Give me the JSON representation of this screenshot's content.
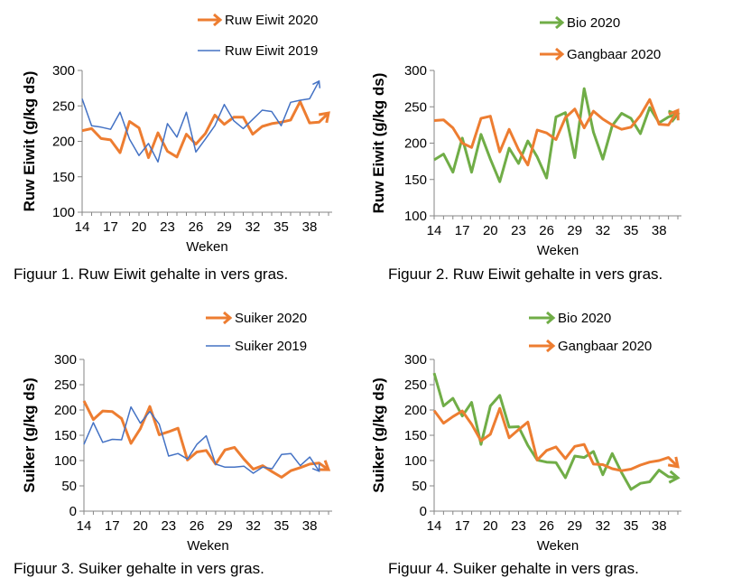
{
  "captions": [
    "Figuur 1. Ruw Eiwit gehalte in vers gras.",
    "Figuur 2. Ruw Eiwit gehalte in vers gras.",
    "Figuur 3. Suiker gehalte in vers gras.",
    "Figuur 4. Suiker gehalte in vers gras."
  ],
  "colors": {
    "orange": "#ED7D31",
    "blue": "#4472C4",
    "green": "#70AD47",
    "axis": "#868686",
    "text": "#000000"
  },
  "chart_data": [
    {
      "type": "line",
      "xlabel": "Weken",
      "ylabel": "Ruw Eiwit (g/kg ds)",
      "xlim": [
        14,
        40
      ],
      "ylim": [
        100,
        300
      ],
      "xticks": [
        14,
        17,
        20,
        23,
        26,
        29,
        32,
        35,
        38
      ],
      "yticks": [
        100,
        150,
        200,
        250,
        300
      ],
      "grid": false,
      "legend": "top-right",
      "series": [
        {
          "name": "Ruw Eiwit 2020",
          "color": "#ED7D31",
          "width": 3,
          "x": [
            14,
            15,
            16,
            17,
            18,
            19,
            20,
            21,
            22,
            23,
            24,
            25,
            26,
            27,
            28,
            29,
            30,
            31,
            32,
            33,
            34,
            35,
            36,
            37,
            38,
            39,
            40
          ],
          "values": [
            215,
            218,
            204,
            202,
            184,
            228,
            219,
            177,
            212,
            186,
            178,
            210,
            196,
            211,
            237,
            224,
            234,
            234,
            210,
            221,
            225,
            227,
            230,
            256,
            226,
            227,
            240
          ]
        },
        {
          "name": "Ruw Eiwit 2019",
          "color": "#4472C4",
          "width": 1.5,
          "x": [
            14,
            15,
            16,
            17,
            18,
            19,
            20,
            21,
            22,
            23,
            24,
            25,
            26,
            27,
            28,
            29,
            30,
            31,
            32,
            33,
            34,
            35,
            36,
            37,
            38,
            39
          ],
          "values": [
            260,
            222,
            220,
            217,
            241,
            203,
            180,
            197,
            171,
            225,
            206,
            241,
            185,
            203,
            222,
            252,
            229,
            218,
            231,
            244,
            242,
            222,
            255,
            258,
            260,
            285
          ]
        }
      ]
    },
    {
      "type": "line",
      "xlabel": "Weken",
      "ylabel": "Ruw Eiwit (g/kg ds)",
      "xlim": [
        14,
        40
      ],
      "ylim": [
        100,
        300
      ],
      "xticks": [
        14,
        17,
        20,
        23,
        26,
        29,
        32,
        35,
        38
      ],
      "yticks": [
        100,
        150,
        200,
        250,
        300
      ],
      "grid": false,
      "legend": "top-right",
      "series": [
        {
          "name": "Bio 2020",
          "color": "#70AD47",
          "width": 3,
          "x": [
            14,
            15,
            16,
            17,
            18,
            19,
            20,
            21,
            22,
            23,
            24,
            25,
            26,
            27,
            28,
            29,
            30,
            31,
            32,
            33,
            34,
            35,
            36,
            37,
            38,
            39,
            40
          ],
          "values": [
            177,
            185,
            160,
            207,
            160,
            212,
            178,
            147,
            193,
            172,
            203,
            181,
            152,
            236,
            242,
            180,
            275,
            215,
            178,
            224,
            241,
            234,
            213,
            249,
            228,
            236,
            240
          ]
        },
        {
          "name": "Gangbaar 2020",
          "color": "#ED7D31",
          "width": 3,
          "x": [
            14,
            15,
            16,
            17,
            18,
            19,
            20,
            21,
            22,
            23,
            24,
            25,
            26,
            27,
            28,
            29,
            30,
            31,
            32,
            33,
            34,
            35,
            36,
            37,
            38,
            39,
            40
          ],
          "values": [
            231,
            232,
            221,
            200,
            194,
            234,
            237,
            188,
            219,
            191,
            170,
            218,
            214,
            205,
            235,
            247,
            221,
            244,
            233,
            225,
            219,
            222,
            238,
            260,
            226,
            225,
            245
          ]
        }
      ]
    },
    {
      "type": "line",
      "xlabel": "Weken",
      "ylabel": "Suiker (g/kg ds)",
      "xlim": [
        14,
        40
      ],
      "ylim": [
        0,
        300
      ],
      "xticks": [
        14,
        17,
        20,
        23,
        26,
        29,
        32,
        35,
        38
      ],
      "yticks": [
        0,
        50,
        100,
        150,
        200,
        250,
        300
      ],
      "grid": false,
      "legend": "top-right",
      "series": [
        {
          "name": "Suiker 2020",
          "color": "#ED7D31",
          "width": 3,
          "x": [
            14,
            15,
            16,
            17,
            18,
            19,
            20,
            21,
            22,
            23,
            24,
            25,
            26,
            27,
            28,
            29,
            30,
            31,
            32,
            33,
            34,
            35,
            36,
            37,
            38,
            39,
            40
          ],
          "values": [
            218,
            181,
            198,
            197,
            183,
            134,
            163,
            207,
            151,
            157,
            164,
            101,
            117,
            120,
            93,
            121,
            126,
            103,
            83,
            90,
            78,
            67,
            80,
            86,
            93,
            95,
            82
          ]
        },
        {
          "name": "Suiker 2019",
          "color": "#4472C4",
          "width": 1.5,
          "x": [
            14,
            15,
            16,
            17,
            18,
            19,
            20,
            21,
            22,
            23,
            24,
            25,
            26,
            27,
            28,
            29,
            30,
            31,
            32,
            33,
            34,
            35,
            36,
            37,
            38,
            39
          ],
          "values": [
            132,
            175,
            136,
            142,
            141,
            206,
            174,
            197,
            172,
            109,
            114,
            103,
            132,
            149,
            93,
            87,
            87,
            89,
            75,
            87,
            84,
            112,
            114,
            90,
            107,
            79
          ]
        }
      ]
    },
    {
      "type": "line",
      "xlabel": "Weken",
      "ylabel": "Suiker (g/kg ds)",
      "xlim": [
        14,
        40
      ],
      "ylim": [
        0,
        300
      ],
      "xticks": [
        14,
        17,
        20,
        23,
        26,
        29,
        32,
        35,
        38
      ],
      "yticks": [
        0,
        50,
        100,
        150,
        200,
        250,
        300
      ],
      "grid": false,
      "legend": "top-right",
      "series": [
        {
          "name": "Bio 2020",
          "color": "#70AD47",
          "width": 3,
          "x": [
            14,
            15,
            16,
            17,
            18,
            19,
            20,
            21,
            22,
            23,
            24,
            25,
            26,
            27,
            28,
            29,
            30,
            31,
            32,
            33,
            34,
            35,
            36,
            37,
            38,
            39,
            40
          ],
          "values": [
            273,
            208,
            223,
            188,
            215,
            132,
            208,
            229,
            166,
            167,
            130,
            101,
            97,
            96,
            66,
            109,
            106,
            118,
            72,
            114,
            76,
            43,
            55,
            58,
            81,
            68,
            66
          ]
        },
        {
          "name": "Gangbaar 2020",
          "color": "#ED7D31",
          "width": 3,
          "x": [
            14,
            15,
            16,
            17,
            18,
            19,
            20,
            21,
            22,
            23,
            24,
            25,
            26,
            27,
            28,
            29,
            30,
            31,
            32,
            33,
            34,
            35,
            36,
            37,
            38,
            39,
            40
          ],
          "values": [
            199,
            174,
            187,
            198,
            172,
            139,
            152,
            203,
            145,
            161,
            176,
            101,
            120,
            127,
            104,
            128,
            132,
            93,
            92,
            84,
            80,
            83,
            91,
            97,
            100,
            106,
            88
          ]
        }
      ]
    }
  ]
}
